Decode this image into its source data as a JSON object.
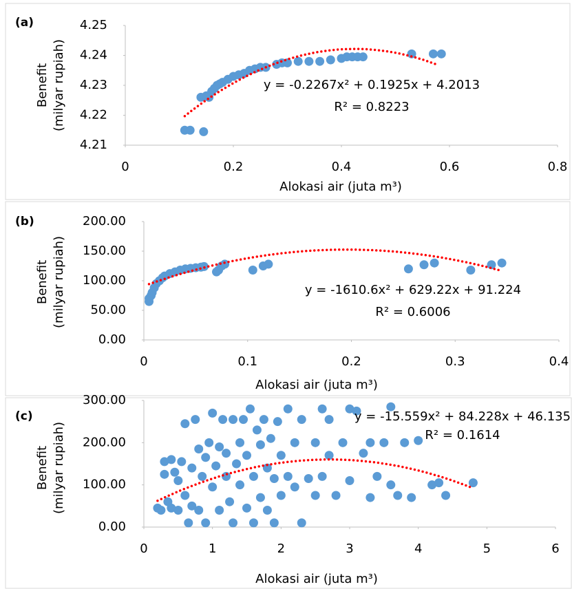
{
  "chart_data": [
    {
      "type": "scatter",
      "title": "(a)",
      "ylabel": [
        "Benefit",
        "(milyar rupiah)"
      ],
      "xlabel": "Alokasi air (juta m³)",
      "x": [
        0.11,
        0.12,
        0.145,
        0.14,
        0.15,
        0.155,
        0.16,
        0.165,
        0.17,
        0.175,
        0.18,
        0.19,
        0.2,
        0.21,
        0.22,
        0.23,
        0.24,
        0.25,
        0.26,
        0.28,
        0.29,
        0.3,
        0.32,
        0.34,
        0.36,
        0.38,
        0.4,
        0.41,
        0.42,
        0.43,
        0.44,
        0.53,
        0.57,
        0.585
      ],
      "values": [
        4.215,
        4.215,
        4.2145,
        4.226,
        4.2265,
        4.226,
        4.228,
        4.229,
        4.23,
        4.2305,
        4.231,
        4.232,
        4.233,
        4.2335,
        4.234,
        4.235,
        4.2355,
        4.236,
        4.236,
        4.237,
        4.2375,
        4.2375,
        4.238,
        4.238,
        4.238,
        4.2385,
        4.239,
        4.2395,
        4.2395,
        4.2395,
        4.2395,
        4.2405,
        4.2405,
        4.2405
      ],
      "color": "#5b9bd5",
      "xlim": [
        0,
        0.8
      ],
      "xticks": [
        0,
        0.2,
        0.4,
        0.6,
        0.8
      ],
      "ylim": [
        4.21,
        4.25
      ],
      "yticks": [
        4.21,
        4.22,
        4.23,
        4.24,
        4.25
      ],
      "trendline": {
        "color": "#ff0000",
        "coefficients": [
          -0.2267,
          0.1925,
          4.2013
        ],
        "xlim": [
          0.11,
          0.58
        ],
        "equation": "y = -0.2267x² + 0.1925x + 4.2013",
        "r_squared": "R² = 0.8223"
      }
    },
    {
      "type": "scatter",
      "title": "(b)",
      "ylabel": [
        "Benefit",
        "(milyar rupiah)"
      ],
      "xlabel": "Alokasi air (juta m³)",
      "x": [
        0.005,
        0.005,
        0.007,
        0.008,
        0.01,
        0.012,
        0.015,
        0.018,
        0.02,
        0.025,
        0.03,
        0.035,
        0.04,
        0.045,
        0.05,
        0.055,
        0.058,
        0.07,
        0.072,
        0.075,
        0.078,
        0.105,
        0.115,
        0.12,
        0.255,
        0.27,
        0.28,
        0.315,
        0.335,
        0.345
      ],
      "values": [
        65,
        70,
        75,
        80,
        88,
        95,
        100,
        105,
        108,
        112,
        115,
        118,
        120,
        121,
        122,
        123,
        124,
        115,
        118,
        125,
        128,
        118,
        125,
        128,
        120,
        127,
        130,
        118,
        127,
        130
      ],
      "color": "#5b9bd5",
      "xlim": [
        0,
        0.4
      ],
      "xticks": [
        0,
        0.1,
        0.2,
        0.3,
        0.4
      ],
      "ylim": [
        0,
        200
      ],
      "yticks": [
        {
          "value": 0,
          "label": "0.00"
        },
        {
          "value": 50,
          "label": "50.00"
        },
        {
          "value": 100,
          "label": "100.00"
        },
        {
          "value": 150,
          "label": "150.00"
        },
        {
          "value": 200,
          "label": "200.00"
        }
      ],
      "trendline": {
        "color": "#ff0000",
        "coefficients": [
          -1610.6,
          629.22,
          91.224
        ],
        "xlim": [
          0.005,
          0.345
        ],
        "equation": "y = -1610.6x² + 629.22x + 91.224",
        "r_squared": "R² = 0.6006"
      }
    },
    {
      "type": "scatter",
      "title": "(c)",
      "ylabel": [
        "Benefit",
        "(milyar rupiah)"
      ],
      "xlabel": "Alokasi air (juta m³)",
      "x": [
        0.2,
        0.25,
        0.3,
        0.3,
        0.35,
        0.4,
        0.4,
        0.45,
        0.5,
        0.5,
        0.55,
        0.6,
        0.6,
        0.65,
        0.7,
        0.7,
        0.75,
        0.8,
        0.8,
        0.85,
        0.9,
        0.9,
        0.95,
        1.0,
        1.0,
        1.05,
        1.1,
        1.1,
        1.15,
        1.2,
        1.2,
        1.25,
        1.3,
        1.3,
        1.35,
        1.4,
        1.4,
        1.45,
        1.5,
        1.5,
        1.55,
        1.6,
        1.6,
        1.65,
        1.7,
        1.7,
        1.75,
        1.8,
        1.8,
        1.85,
        1.9,
        1.9,
        1.95,
        2.0,
        2.0,
        2.1,
        2.1,
        2.2,
        2.2,
        2.3,
        2.3,
        2.4,
        2.5,
        2.5,
        2.6,
        2.6,
        2.7,
        2.7,
        2.8,
        2.9,
        3.0,
        3.0,
        3.1,
        3.2,
        3.3,
        3.3,
        3.4,
        3.5,
        3.6,
        3.6,
        3.7,
        3.8,
        3.9,
        4.0,
        4.2,
        4.3,
        4.4,
        4.8
      ],
      "values": [
        45,
        40,
        155,
        125,
        60,
        160,
        45,
        130,
        110,
        40,
        155,
        75,
        245,
        10,
        140,
        50,
        255,
        185,
        40,
        120,
        10,
        165,
        200,
        270,
        95,
        145,
        190,
        40,
        255,
        120,
        175,
        60,
        255,
        10,
        150,
        100,
        200,
        255,
        45,
        170,
        280,
        120,
        10,
        230,
        195,
        70,
        255,
        140,
        40,
        210,
        10,
        115,
        250,
        170,
        75,
        280,
        120,
        200,
        95,
        10,
        255,
        115,
        200,
        75,
        280,
        120,
        255,
        170,
        75,
        200,
        280,
        110,
        275,
        175,
        200,
        70,
        120,
        200,
        285,
        100,
        75,
        200,
        70,
        205,
        100,
        105,
        75,
        105
      ],
      "color": "#5b9bd5",
      "xlim": [
        0,
        6
      ],
      "xticks": [
        0,
        1,
        2,
        3,
        4,
        5,
        6
      ],
      "ylim": [
        0,
        300
      ],
      "yticks": [
        {
          "value": 0,
          "label": "0.00"
        },
        {
          "value": 100,
          "label": "100.00"
        },
        {
          "value": 200,
          "label": "200.00"
        },
        {
          "value": 300,
          "label": "300.00"
        }
      ],
      "trendline": {
        "color": "#ff0000",
        "coefficients": [
          -15.559,
          84.228,
          46.135
        ],
        "xlim": [
          0.2,
          4.8
        ],
        "equation": "y = -15.559x² + 84.228x + 46.135",
        "r_squared": "R² = 0.1614"
      }
    }
  ]
}
